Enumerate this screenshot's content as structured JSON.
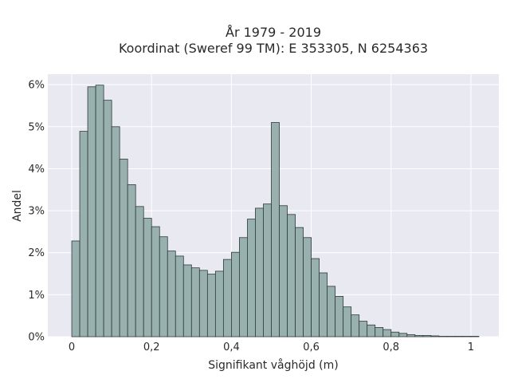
{
  "chart_data": {
    "type": "bar",
    "title_line1": "År 1979 - 2019",
    "title_line2": "Koordinat (Sweref 99 TM): E 353305, N 6254363",
    "xlabel": "Signifikant våghöjd (m)",
    "ylabel": "Andel",
    "xlim": [
      -0.06,
      1.07
    ],
    "ylim": [
      0,
      0.0625
    ],
    "bin_width": 0.02,
    "bin_start": 0.0,
    "x_ticks": [
      0,
      0.2,
      0.4,
      0.6,
      0.8,
      1
    ],
    "x_tick_labels": [
      "0",
      "0,2",
      "0,4",
      "0,6",
      "0,8",
      "1"
    ],
    "y_ticks": [
      0,
      0.01,
      0.02,
      0.03,
      0.04,
      0.05,
      0.06
    ],
    "y_tick_labels": [
      "0%",
      "1%",
      "2%",
      "3%",
      "4%",
      "5%",
      "6%"
    ],
    "grid": true,
    "legend": "none",
    "colors": {
      "plot_background": "#e9e9f2",
      "bar_fill": "#98b0ae",
      "bar_stroke": "#2f3b3a",
      "grid": "#ffffff"
    },
    "values": [
      0.0228,
      0.0489,
      0.0595,
      0.0599,
      0.0563,
      0.05,
      0.0423,
      0.0362,
      0.031,
      0.0282,
      0.0262,
      0.0238,
      0.0204,
      0.0192,
      0.0171,
      0.0164,
      0.0158,
      0.0149,
      0.0156,
      0.0184,
      0.0201,
      0.0236,
      0.028,
      0.0306,
      0.0316,
      0.051,
      0.0312,
      0.0291,
      0.026,
      0.0236,
      0.0186,
      0.0152,
      0.012,
      0.0096,
      0.0071,
      0.0052,
      0.0037,
      0.0028,
      0.0022,
      0.0017,
      0.0011,
      0.0008,
      0.0005,
      0.0003,
      0.0003,
      0.0002,
      0.0001,
      0.0001,
      0.0001,
      0.0001,
      0.0001
    ]
  }
}
